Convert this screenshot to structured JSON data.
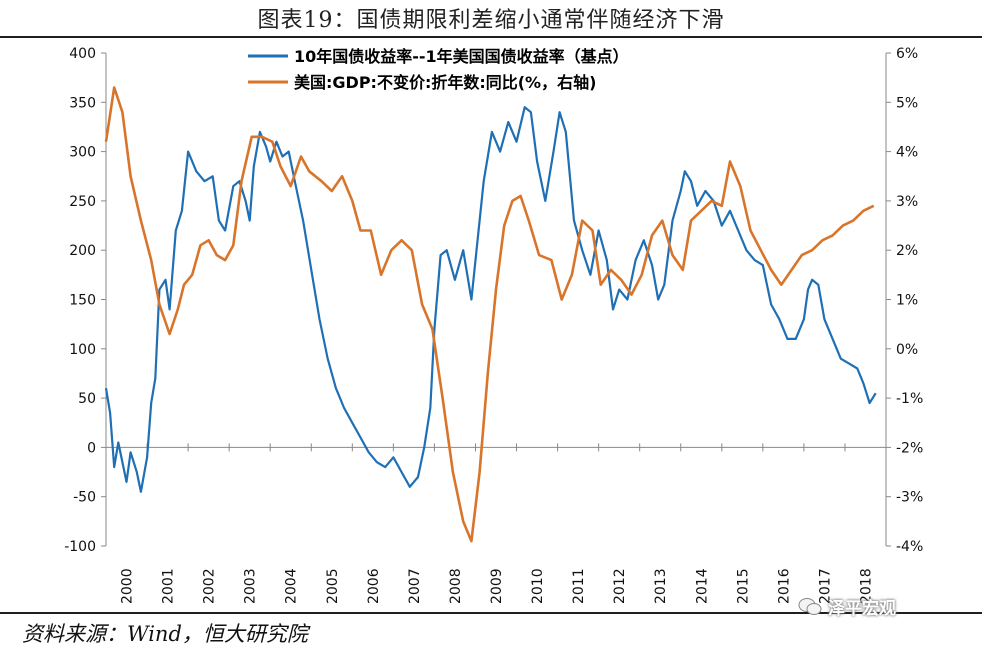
{
  "figure": {
    "title": "图表19：国债期限利差缩小通常伴随经济下滑",
    "source": "资料来源：Wind，恒大研究院",
    "watermark": "泽平宏观"
  },
  "colors": {
    "spread": "#1f6fb5",
    "gdp": "#d9752b",
    "axis": "#888888"
  },
  "chart_data": {
    "type": "line",
    "title": "图表19：国债期限利差缩小通常伴随经济下滑",
    "xlabel": "",
    "ylabel_left": "",
    "ylabel_right": "",
    "x_ticks": [
      "2000",
      "2001",
      "2002",
      "2003",
      "2004",
      "2005",
      "2006",
      "2007",
      "2008",
      "2009",
      "2010",
      "2011",
      "2012",
      "2013",
      "2014",
      "2015",
      "2016",
      "2017",
      "2018"
    ],
    "x_range": [
      2000.0,
      2019.0
    ],
    "ylim_left": [
      -100,
      400
    ],
    "y_ticks_left": [
      "400",
      "350",
      "300",
      "250",
      "200",
      "150",
      "100",
      "50",
      "0",
      "-50",
      "-100"
    ],
    "ylim_right": [
      -4,
      6
    ],
    "y_ticks_right": [
      "6%",
      "5%",
      "4%",
      "3%",
      "2%",
      "1%",
      "0%",
      "-1%",
      "-2%",
      "-3%",
      "-4%"
    ],
    "legend_position": "top",
    "series": [
      {
        "name": "10年国债收益率--1年美国国债收益率（基点）",
        "axis": "left",
        "x": [
          2000.0,
          2000.1,
          2000.2,
          2000.3,
          2000.5,
          2000.6,
          2000.75,
          2000.85,
          2001.0,
          2001.1,
          2001.2,
          2001.3,
          2001.45,
          2001.55,
          2001.7,
          2001.85,
          2002.0,
          2002.2,
          2002.4,
          2002.6,
          2002.75,
          2002.9,
          2003.1,
          2003.25,
          2003.4,
          2003.5,
          2003.6,
          2003.75,
          2003.9,
          2004.0,
          2004.15,
          2004.3,
          2004.45,
          2004.6,
          2004.8,
          2005.0,
          2005.2,
          2005.4,
          2005.6,
          2005.8,
          2006.0,
          2006.2,
          2006.4,
          2006.6,
          2006.8,
          2007.0,
          2007.2,
          2007.4,
          2007.6,
          2007.75,
          2007.9,
          2008.0,
          2008.15,
          2008.3,
          2008.5,
          2008.7,
          2008.9,
          2009.1,
          2009.2,
          2009.4,
          2009.6,
          2009.8,
          2010.0,
          2010.2,
          2010.35,
          2010.5,
          2010.7,
          2010.9,
          2011.05,
          2011.2,
          2011.4,
          2011.6,
          2011.8,
          2012.0,
          2012.2,
          2012.35,
          2012.5,
          2012.7,
          2012.9,
          2013.1,
          2013.3,
          2013.45,
          2013.6,
          2013.8,
          2014.0,
          2014.1,
          2014.25,
          2014.4,
          2014.6,
          2014.8,
          2015.0,
          2015.2,
          2015.4,
          2015.6,
          2015.8,
          2016.0,
          2016.2,
          2016.4,
          2016.6,
          2016.8,
          2017.0,
          2017.1,
          2017.2,
          2017.35,
          2017.5,
          2017.7,
          2017.9,
          2018.1,
          2018.3,
          2018.45,
          2018.6,
          2018.75
        ],
        "values": [
          60,
          35,
          -20,
          5,
          -35,
          -5,
          -25,
          -45,
          -10,
          45,
          70,
          160,
          170,
          140,
          220,
          240,
          300,
          280,
          270,
          275,
          230,
          220,
          265,
          270,
          250,
          230,
          285,
          320,
          305,
          290,
          310,
          295,
          300,
          270,
          230,
          180,
          130,
          90,
          60,
          40,
          25,
          10,
          -5,
          -15,
          -20,
          -10,
          -25,
          -40,
          -30,
          0,
          40,
          120,
          195,
          200,
          170,
          200,
          150,
          230,
          270,
          320,
          300,
          330,
          310,
          345,
          340,
          290,
          250,
          300,
          340,
          320,
          230,
          200,
          175,
          220,
          190,
          140,
          160,
          150,
          190,
          210,
          185,
          150,
          165,
          230,
          260,
          280,
          270,
          245,
          260,
          250,
          225,
          240,
          220,
          200,
          190,
          185,
          145,
          130,
          110,
          110,
          130,
          160,
          170,
          165,
          130,
          110,
          90,
          85,
          80,
          65,
          45,
          55
        ]
      },
      {
        "name": "美国:GDP:不变价:折年数:同比(%，右轴)",
        "axis": "right",
        "x": [
          2000.0,
          2000.2,
          2000.4,
          2000.6,
          2000.85,
          2001.1,
          2001.3,
          2001.55,
          2001.75,
          2001.9,
          2002.1,
          2002.3,
          2002.5,
          2002.7,
          2002.9,
          2003.1,
          2003.3,
          2003.55,
          2003.8,
          2004.05,
          2004.25,
          2004.5,
          2004.75,
          2004.95,
          2005.25,
          2005.5,
          2005.75,
          2006.0,
          2006.2,
          2006.45,
          2006.7,
          2006.95,
          2007.2,
          2007.45,
          2007.7,
          2007.95,
          2008.2,
          2008.45,
          2008.7,
          2008.9,
          2009.1,
          2009.3,
          2009.5,
          2009.7,
          2009.9,
          2010.1,
          2010.3,
          2010.55,
          2010.85,
          2011.1,
          2011.35,
          2011.6,
          2011.85,
          2012.05,
          2012.3,
          2012.55,
          2012.8,
          2013.05,
          2013.3,
          2013.55,
          2013.8,
          2014.05,
          2014.25,
          2014.5,
          2014.75,
          2015.0,
          2015.2,
          2015.45,
          2015.7,
          2015.95,
          2016.2,
          2016.45,
          2016.7,
          2016.95,
          2017.2,
          2017.45,
          2017.7,
          2017.95,
          2018.2,
          2018.45,
          2018.7
        ],
        "values": [
          4.2,
          5.3,
          4.8,
          3.5,
          2.6,
          1.8,
          0.9,
          0.3,
          0.8,
          1.3,
          1.5,
          2.1,
          2.2,
          1.9,
          1.8,
          2.1,
          3.4,
          4.3,
          4.3,
          4.2,
          3.7,
          3.3,
          3.9,
          3.6,
          3.4,
          3.2,
          3.5,
          3.0,
          2.4,
          2.4,
          1.5,
          2.0,
          2.2,
          2.0,
          0.9,
          0.4,
          -1.0,
          -2.5,
          -3.5,
          -3.9,
          -2.5,
          -0.5,
          1.2,
          2.5,
          3.0,
          3.1,
          2.6,
          1.9,
          1.8,
          1.0,
          1.5,
          2.6,
          2.4,
          1.3,
          1.6,
          1.4,
          1.1,
          1.5,
          2.3,
          2.6,
          1.9,
          1.6,
          2.6,
          2.8,
          3.0,
          2.9,
          3.8,
          3.3,
          2.4,
          2.0,
          1.6,
          1.3,
          1.6,
          1.9,
          2.0,
          2.2,
          2.3,
          2.5,
          2.6,
          2.8,
          2.9
        ]
      }
    ]
  }
}
